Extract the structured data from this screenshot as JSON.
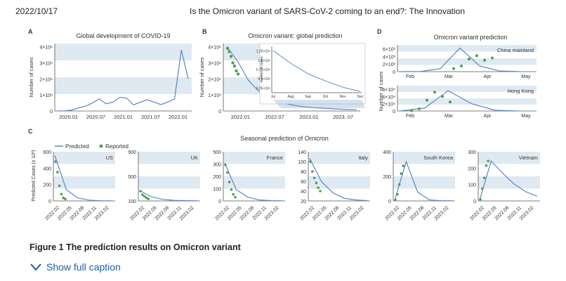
{
  "header": {
    "date": "2022/10/17",
    "title": "Is the Omicron variant of SARS-CoV-2 coming to an end?: The Innovation"
  },
  "caption": {
    "figure_title": "Figure 1  The prediction results on Omicron variant",
    "show_full_caption": "Show full caption",
    "toggle_icon": "chevron-down-icon"
  },
  "colors": {
    "line": "#5a86c5",
    "reported": "#4aa34a",
    "band": "#dfe9f2"
  },
  "chart_data": [
    {
      "id": "A",
      "panel_label": "A",
      "type": "line",
      "title": "Global development of COVID-19",
      "ylabel": "Number of cases",
      "x_ticks": [
        "2020.01",
        "2020.07",
        "2021.01",
        "2021.07",
        "2022.01"
      ],
      "y_ticks": [
        "0",
        "1×10⁶",
        "2×10⁶",
        "3×10⁶",
        "4×10⁶"
      ],
      "ylim": [
        0,
        4200000
      ],
      "series": [
        {
          "x": [
            "2020.01",
            "2020.03",
            "2020.05",
            "2020.07",
            "2020.09",
            "2020.11",
            "2021.01",
            "2021.02",
            "2021.03",
            "2021.04",
            "2021.05",
            "2021.06",
            "2021.07",
            "2021.08",
            "2021.09",
            "2021.10",
            "2021.11",
            "2021.12",
            "2022.01",
            "2022.02"
          ],
          "values": [
            0,
            10000,
            60000,
            200000,
            300000,
            500000,
            750000,
            450000,
            550000,
            850000,
            800000,
            380000,
            550000,
            700000,
            550000,
            400000,
            550000,
            750000,
            3800000,
            2000000
          ]
        }
      ]
    },
    {
      "id": "B",
      "panel_label": "B",
      "type": "line",
      "title": "Omicron variant: global prediction",
      "ylabel": "Number of cases",
      "x_ticks": [
        "2022.01",
        "2022.07",
        "2023.01",
        "2023. 07"
      ],
      "y_ticks": [
        "0",
        "1×10⁶",
        "2×10⁶",
        "3×10⁶",
        "4×10⁶"
      ],
      "ylim": [
        0,
        4200000
      ],
      "predicted": {
        "x": [
          "2022.01",
          "2022.02",
          "2022.03",
          "2022.04",
          "2022.05",
          "2022.06",
          "2022.07",
          "2022.09",
          "2022.11",
          "2023.01",
          "2023.04",
          "2023.07",
          "2023.10"
        ],
        "values": [
          4000000,
          3100000,
          1900000,
          1200000,
          800000,
          520000,
          380000,
          270000,
          210000,
          170000,
          130000,
          100000,
          80000
        ]
      },
      "reported": {
        "x": [
          "2022.01",
          "2022.01",
          "2022.01",
          "2022.01",
          "2022.02",
          "2022.02",
          "2022.02"
        ],
        "values": [
          3900000,
          3700000,
          3400000,
          3000000,
          2800000,
          2500000,
          2300000
        ]
      },
      "inset": {
        "x_ticks": [
          "Jul",
          "Aug",
          "Sep",
          "Oct",
          "Nov",
          "Dec"
        ],
        "y_ticks": [
          "0.25×10⁶",
          "0.5×10⁶",
          "0.75×10⁶",
          "1.0×10⁶",
          "1.25×10⁶"
        ],
        "ylabel": "number of cases",
        "ylim": [
          200000,
          1300000
        ],
        "x": [
          "Jul",
          "Aug",
          "Sep",
          "Oct",
          "Nov",
          "Dec"
        ],
        "values": [
          1200000,
          900000,
          650000,
          480000,
          330000,
          230000
        ]
      }
    },
    {
      "id": "D",
      "panel_label": "D",
      "type": "line",
      "title": "Omicron variant prediction",
      "ylabel": "Number of cases",
      "subpanels": [
        {
          "region": "China mainland",
          "x_ticks": [
            "Feb",
            "Mar",
            "Apr",
            "May"
          ],
          "y_ticks": [
            "0",
            "2×10³",
            "4×10³",
            "6×10³"
          ],
          "ylim": [
            0,
            7000
          ],
          "predicted": {
            "x": [
              "Feb",
              "Feb",
              "Mar",
              "Mar",
              "Apr",
              "Apr",
              "May"
            ],
            "values": [
              0,
              50,
              800,
              6200,
              1500,
              200,
              20
            ]
          },
          "reported": {
            "x": [
              "Mar",
              "Mar",
              "Mar",
              "Apr",
              "Apr",
              "Apr"
            ],
            "values": [
              800,
              1500,
              3300,
              4200,
              3000,
              3600
            ]
          }
        },
        {
          "region": "Hong Kong",
          "x_ticks": [
            "Feb",
            "Mar",
            "Apr",
            "May"
          ],
          "y_ticks": [
            "0",
            "2×10⁴",
            "4×10⁴",
            "6×10⁴"
          ],
          "ylim": [
            0,
            70000
          ],
          "predicted": {
            "x": [
              "Feb",
              "Feb",
              "Mar",
              "Mar",
              "Apr",
              "May"
            ],
            "values": [
              500,
              8000,
              56000,
              20000,
              2000,
              100
            ]
          },
          "reported": {
            "x": [
              "Feb",
              "Feb",
              "Mar",
              "Mar",
              "Mar",
              "Mar"
            ],
            "values": [
              1000,
              6000,
              30000,
              52000,
              40000,
              25000
            ]
          }
        }
      ]
    },
    {
      "id": "C",
      "panel_label": "C",
      "type": "line",
      "title": "Seasonal prediction of Omicron",
      "ylabel": "Predicted Cases (x 10³)",
      "legend": {
        "predicted": "Predicted",
        "reported": "Reported"
      },
      "x_ticks": [
        "2022.02",
        "2022.05",
        "2022.08",
        "2022.11",
        "2023.02"
      ],
      "countries": [
        {
          "name": "US",
          "y_ticks": [
            "0",
            "200",
            "400",
            "600"
          ],
          "ylim": [
            0,
            650
          ],
          "predicted": [
            600,
            150,
            40,
            10,
            3,
            1
          ],
          "reported": [
            520,
            380,
            200,
            90,
            40,
            25
          ]
        },
        {
          "name": "UK",
          "y_ticks": [
            "100",
            "500",
            "900"
          ],
          "ylim": [
            0,
            950
          ],
          "predicted": [
            200,
            80,
            30,
            10,
            5,
            2
          ],
          "reported": [
            190,
            120,
            90,
            60,
            40
          ]
        },
        {
          "name": "France",
          "y_ticks": [
            "0",
            "100",
            "200",
            "300",
            "500"
          ],
          "ylim": [
            0,
            520
          ],
          "predicted": [
            400,
            120,
            40,
            10,
            3,
            1
          ],
          "reported": [
            380,
            300,
            200,
            120,
            70,
            40
          ]
        },
        {
          "name": "Italy",
          "y_ticks": [
            "20",
            "40",
            "60",
            "80",
            "100",
            "140"
          ],
          "ylim": [
            0,
            150
          ],
          "predicted": [
            130,
            60,
            25,
            8,
            3,
            1
          ],
          "reported": [
            120,
            90,
            70,
            55,
            40,
            30
          ]
        },
        {
          "name": "South Korea",
          "y_ticks": [
            "0",
            "200",
            "400"
          ],
          "ylim": [
            0,
            450
          ],
          "predicted": [
            5,
            360,
            80,
            10,
            2,
            1
          ],
          "reported": [
            10,
            60,
            150,
            250,
            320
          ]
        },
        {
          "name": "Vietnam",
          "y_ticks": [
            "0",
            "100",
            "200",
            "300"
          ],
          "ylim": [
            0,
            320
          ],
          "predicted": [
            5,
            260,
            180,
            110,
            60,
            30
          ],
          "reported": [
            10,
            80,
            150,
            230,
            260
          ]
        }
      ]
    }
  ]
}
